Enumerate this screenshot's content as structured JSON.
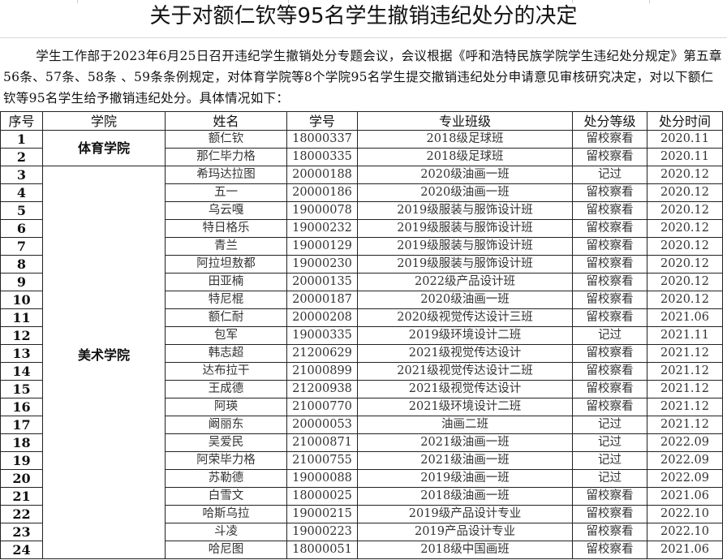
{
  "title": "关于对额仁钦等95名学生撤销违纪处分的决定",
  "intro": "学生工作部于2023年6月25日召开违纪学生撤销处分专题会议，会议根据《呼和浩特民族学院学生违纪处分规定》第五章56条、57条、58条 、59条条例规定，对体育学院等8个学院95名学生提交撤销违纪处分申请意见审核研究决定，对以下额仁钦等95名学生给予撤销违纪处分。具体情况如下：",
  "headers": [
    "序号",
    "学院",
    "姓名",
    "学号",
    "专业班级",
    "处分等级",
    "处分时间"
  ],
  "colleges": {
    "sport": "体育学院",
    "art": "美术学院"
  },
  "rows": [
    [
      "1",
      "额仁钦",
      "18000337",
      "2018级足球班",
      "留校察看",
      "2020.11"
    ],
    [
      "2",
      "那仁毕力格",
      "18000335",
      "2018级足球班",
      "留校察看",
      "2020.11"
    ],
    [
      "3",
      "希玛达拉图",
      "20000188",
      "2020级油画一班",
      "记过",
      "2020.12"
    ],
    [
      "4",
      "五一",
      "20000186",
      "2020级油画一班",
      "留校察看",
      "2020.12"
    ],
    [
      "5",
      "乌云嘎",
      "19000078",
      "2019级服装与服饰设计班",
      "留校察看",
      "2020.12"
    ],
    [
      "6",
      "特日格乐",
      "19000232",
      "2019级服装与服饰设计班",
      "留校察看",
      "2020.12"
    ],
    [
      "7",
      "青兰",
      "19000129",
      "2019级服装与服饰设计班",
      "留校察看",
      "2020.12"
    ],
    [
      "8",
      "阿拉坦敖都",
      "19000230",
      "2019级服装与服饰设计班",
      "留校察看",
      "2020.12"
    ],
    [
      "9",
      "田亚楠",
      "20000135",
      "2022级产品设计班",
      "留校察看",
      "2020.12"
    ],
    [
      "10",
      "特尼棍",
      "20000187",
      "2020级油画一班",
      "留校察看",
      "2020.12"
    ],
    [
      "11",
      "额仁耐",
      "20000208",
      "2020级视觉传达设计三班",
      "留校察看",
      "2021.06"
    ],
    [
      "12",
      "包军",
      "19000335",
      "2019级环境设计二班",
      "记过",
      "2021.11"
    ],
    [
      "13",
      "韩志超",
      "21200629",
      "2021级视觉传达设计",
      "留校察看",
      "2021.12"
    ],
    [
      "14",
      "达布拉干",
      "21000899",
      "2021级视觉传达设计二班",
      "留校察看",
      "2021.12"
    ],
    [
      "15",
      "王成德",
      "21200938",
      "2021级视觉传达设计",
      "留校察看",
      "2021.12"
    ],
    [
      "16",
      "阿瑛",
      "21000770",
      "2021级环境设计二班",
      "留校察看",
      "2021.12"
    ],
    [
      "17",
      "阚丽东",
      "20000053",
      "油画二班",
      "记过",
      "2021.12"
    ],
    [
      "18",
      "吴爱民",
      "21000871",
      "2021级油画一班",
      "记过",
      "2022.09"
    ],
    [
      "19",
      "阿荣毕力格",
      "21000755",
      "2021级油画一班",
      "记过",
      "2022.09"
    ],
    [
      "20",
      "苏勒德",
      "19000088",
      "2019级油画一班",
      "记过",
      "2022.09"
    ],
    [
      "21",
      "白雪文",
      "18000025",
      "2018级油画一班",
      "留校察看",
      "2021.06"
    ],
    [
      "22",
      "哈斯乌拉",
      "19000215",
      "2019级产品设计专业",
      "留校察看",
      "2022.10"
    ],
    [
      "23",
      "斗凌",
      "19000223",
      "2019产品设计专业",
      "留校察看",
      "2022.10"
    ],
    [
      "24",
      "哈尼图",
      "18000051",
      "2018级中国画班",
      "留校察看",
      "2021.06"
    ]
  ]
}
